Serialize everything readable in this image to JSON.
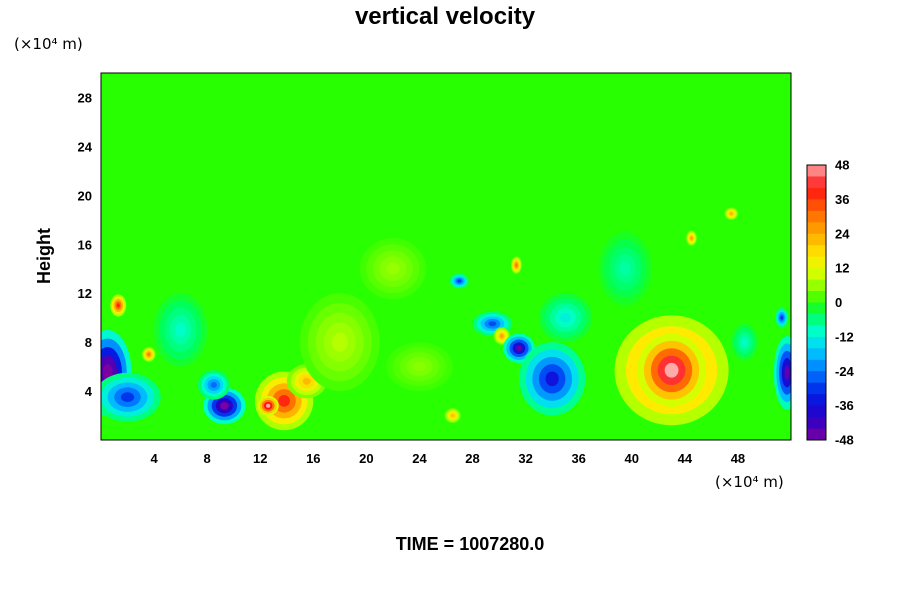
{
  "chart_data": {
    "type": "heatmap",
    "title": "vertical velocity",
    "ylabel": "Height",
    "y_unit": "(×10⁴ m)",
    "x_unit": "(×10⁴ m)",
    "footer": "TIME = 1007280.0",
    "xlim": [
      0,
      52
    ],
    "ylim": [
      0,
      30
    ],
    "x_ticks": [
      4,
      8,
      12,
      16,
      20,
      24,
      28,
      32,
      36,
      40,
      44,
      48
    ],
    "y_ticks": [
      4,
      8,
      12,
      16,
      20,
      24,
      28
    ],
    "colorbar": {
      "range": [
        -48,
        48
      ],
      "tick_values": [
        48,
        36,
        24,
        12,
        0,
        -12,
        -24,
        -36,
        -48
      ],
      "levels": 24
    },
    "background_value": 0,
    "features": [
      {
        "x": 0.5,
        "y": 5.5,
        "rx": 1.8,
        "ry": 3.5,
        "value": -55
      },
      {
        "x": 2.0,
        "y": 3.5,
        "rx": 2.5,
        "ry": 2.0,
        "value": -30
      },
      {
        "x": 1.3,
        "y": 11.0,
        "rx": 0.6,
        "ry": 0.9,
        "value": 38
      },
      {
        "x": 3.6,
        "y": 7.0,
        "rx": 0.5,
        "ry": 0.6,
        "value": 30
      },
      {
        "x": 9.3,
        "y": 2.8,
        "rx": 1.6,
        "ry": 1.5,
        "value": -50
      },
      {
        "x": 8.5,
        "y": 4.5,
        "rx": 1.2,
        "ry": 1.2,
        "value": -25
      },
      {
        "x": 13.8,
        "y": 3.2,
        "rx": 2.2,
        "ry": 2.4,
        "value": 38
      },
      {
        "x": 12.6,
        "y": 2.8,
        "rx": 0.8,
        "ry": 0.8,
        "value": 50
      },
      {
        "x": 15.5,
        "y": 4.8,
        "rx": 1.5,
        "ry": 1.4,
        "value": 22
      },
      {
        "x": 18.0,
        "y": 8.0,
        "rx": 3.0,
        "ry": 4.0,
        "value": 8
      },
      {
        "x": 22.0,
        "y": 14.0,
        "rx": 2.5,
        "ry": 2.5,
        "value": 6
      },
      {
        "x": 26.5,
        "y": 2.0,
        "rx": 0.6,
        "ry": 0.6,
        "value": 22
      },
      {
        "x": 27.0,
        "y": 13.0,
        "rx": 0.7,
        "ry": 0.6,
        "value": -30
      },
      {
        "x": 29.5,
        "y": 9.5,
        "rx": 1.5,
        "ry": 1.0,
        "value": -28
      },
      {
        "x": 30.2,
        "y": 8.5,
        "rx": 0.6,
        "ry": 0.7,
        "value": 25
      },
      {
        "x": 31.5,
        "y": 7.5,
        "rx": 1.2,
        "ry": 1.2,
        "value": -45
      },
      {
        "x": 31.3,
        "y": 14.3,
        "rx": 0.4,
        "ry": 0.7,
        "value": 30
      },
      {
        "x": 34.0,
        "y": 5.0,
        "rx": 2.5,
        "ry": 3.0,
        "value": -35
      },
      {
        "x": 35.0,
        "y": 10.0,
        "rx": 2.0,
        "ry": 2.0,
        "value": -12
      },
      {
        "x": 43.0,
        "y": 5.7,
        "rx": 4.3,
        "ry": 4.5,
        "value": 40
      },
      {
        "x": 43.0,
        "y": 5.7,
        "rx": 2.6,
        "ry": 3.0,
        "value": 52
      },
      {
        "x": 39.5,
        "y": 14.0,
        "rx": 2.0,
        "ry": 3.0,
        "value": -8
      },
      {
        "x": 44.5,
        "y": 16.5,
        "rx": 0.4,
        "ry": 0.6,
        "value": 26
      },
      {
        "x": 47.5,
        "y": 18.5,
        "rx": 0.5,
        "ry": 0.5,
        "value": 24
      },
      {
        "x": 48.5,
        "y": 8.0,
        "rx": 1.0,
        "ry": 1.5,
        "value": -10
      },
      {
        "x": 51.7,
        "y": 5.5,
        "rx": 1.0,
        "ry": 3.0,
        "value": -45
      },
      {
        "x": 51.3,
        "y": 10.0,
        "rx": 0.5,
        "ry": 0.8,
        "value": -30
      },
      {
        "x": 6.0,
        "y": 9.0,
        "rx": 2.0,
        "ry": 3.0,
        "value": -10
      },
      {
        "x": 24.0,
        "y": 6.0,
        "rx": 2.5,
        "ry": 2.0,
        "value": 5
      }
    ]
  }
}
